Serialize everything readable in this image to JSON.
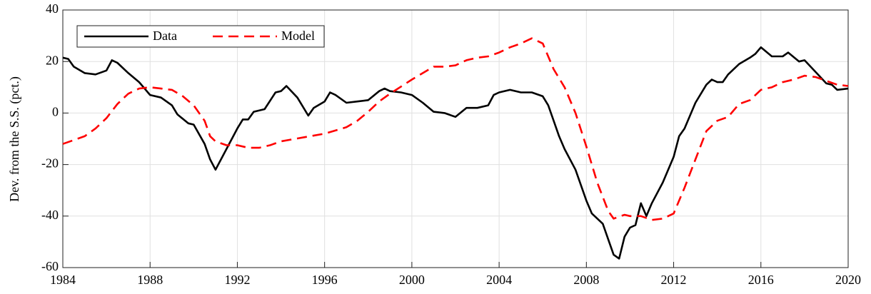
{
  "chart_data": {
    "type": "line",
    "ylabel": "Dev. from the S.S. (pct.)",
    "xlim": [
      1984,
      2020
    ],
    "xticks": [
      1984,
      1988,
      1992,
      1996,
      2000,
      2004,
      2008,
      2012,
      2016,
      2020
    ],
    "ylim": [
      -60,
      40
    ],
    "yticks": [
      -60,
      -40,
      -20,
      0,
      20,
      40
    ],
    "grid": true,
    "legend": "upper left",
    "series": [
      {
        "name": "Data",
        "color": "#000000",
        "linestyle": "solid",
        "x": [
          1984,
          1984.25,
          1984.5,
          1985,
          1985.5,
          1986,
          1986.25,
          1986.5,
          1987,
          1987.5,
          1988,
          1988.5,
          1989,
          1989.25,
          1989.75,
          1990,
          1990.5,
          1990.75,
          1991,
          1991.5,
          1992,
          1992.25,
          1992.5,
          1992.75,
          1993.25,
          1993.75,
          1994,
          1994.25,
          1994.75,
          1995.25,
          1995.5,
          1996,
          1996.25,
          1996.5,
          1997,
          1997.5,
          1998,
          1998.5,
          1998.75,
          1999,
          1999.5,
          2000,
          2000.5,
          2001,
          2001.5,
          2002,
          2002.5,
          2003,
          2003.5,
          2003.75,
          2004,
          2004.5,
          2005,
          2005.5,
          2006,
          2006.25,
          2006.5,
          2006.75,
          2007,
          2007.5,
          2008,
          2008.25,
          2008.75,
          2009,
          2009.25,
          2009.5,
          2009.75,
          2010,
          2010.25,
          2010.5,
          2010.75,
          2011,
          2011.5,
          2012,
          2012.25,
          2012.5,
          2013,
          2013.5,
          2013.75,
          2014,
          2014.25,
          2014.5,
          2015,
          2015.5,
          2015.75,
          2016,
          2016.5,
          2017,
          2017.25,
          2017.75,
          2018,
          2018.5,
          2019,
          2019.25,
          2019.5,
          2020
        ],
        "values": [
          21.5,
          21,
          18,
          15.5,
          15,
          16.5,
          20.5,
          19.5,
          15.5,
          12,
          7,
          6,
          3,
          -0.5,
          -4,
          -4.5,
          -12,
          -18,
          -22,
          -14,
          -6,
          -2.5,
          -2.5,
          0.5,
          1.5,
          8,
          8.5,
          10.5,
          6,
          -1,
          2,
          4.5,
          8,
          7,
          4,
          4.5,
          5,
          8.5,
          9.5,
          8.5,
          8,
          7,
          4,
          0.5,
          0,
          -1.5,
          2,
          2,
          3,
          7,
          8,
          9,
          8,
          8,
          6.5,
          3,
          -3,
          -9,
          -14,
          -22,
          -34,
          -39,
          -43,
          -49,
          -55,
          -56.5,
          -48,
          -44.5,
          -43.5,
          -35,
          -40,
          -35,
          -27,
          -17,
          -9,
          -6,
          4,
          11,
          13,
          12,
          12,
          15,
          19,
          21.5,
          23,
          25.5,
          22,
          22,
          23.5,
          20,
          20.5,
          16,
          11.5,
          11,
          9,
          9.5
        ]
      },
      {
        "name": "Model",
        "color": "#ff0000",
        "linestyle": "dashed",
        "x": [
          1984,
          1985,
          1985.5,
          1986,
          1986.5,
          1987,
          1987.5,
          1988,
          1988.5,
          1989,
          1989.5,
          1990,
          1990.5,
          1990.75,
          1991,
          1991.5,
          1992,
          1992.5,
          1993,
          1993.5,
          1994,
          1995,
          1996,
          1997,
          1997.5,
          1998,
          1998.5,
          1999,
          2000,
          2000.5,
          2001,
          2001.5,
          2002,
          2002.5,
          2003,
          2003.5,
          2004,
          2004.5,
          2005,
          2005.5,
          2006,
          2006.5,
          2007,
          2007.5,
          2008,
          2008.5,
          2009,
          2009.25,
          2009.75,
          2010,
          2010.5,
          2011,
          2011.5,
          2012,
          2012.5,
          2013,
          2013.5,
          2014,
          2014.5,
          2015,
          2015.5,
          2016,
          2016.5,
          2017,
          2017.5,
          2018,
          2018.5,
          2019,
          2019.5,
          2020
        ],
        "values": [
          -12,
          -9,
          -6,
          -2,
          3.5,
          7.5,
          9.5,
          10,
          9.5,
          9,
          6.5,
          3,
          -3,
          -9,
          -11,
          -12.5,
          -12.5,
          -13.5,
          -13.5,
          -12.5,
          -11,
          -9.5,
          -8,
          -5.5,
          -3,
          0.5,
          4.5,
          7.5,
          13,
          15.5,
          18,
          18,
          18.5,
          20.5,
          21.5,
          22,
          23.5,
          25.5,
          27,
          29,
          27,
          17,
          10,
          0,
          -13,
          -27,
          -38,
          -41,
          -39.5,
          -40,
          -40,
          -41.5,
          -41,
          -39,
          -29,
          -18,
          -7,
          -3,
          -1.5,
          3.5,
          5,
          9,
          10,
          12,
          13,
          14.5,
          14,
          12.5,
          11,
          10.5
        ]
      }
    ]
  }
}
